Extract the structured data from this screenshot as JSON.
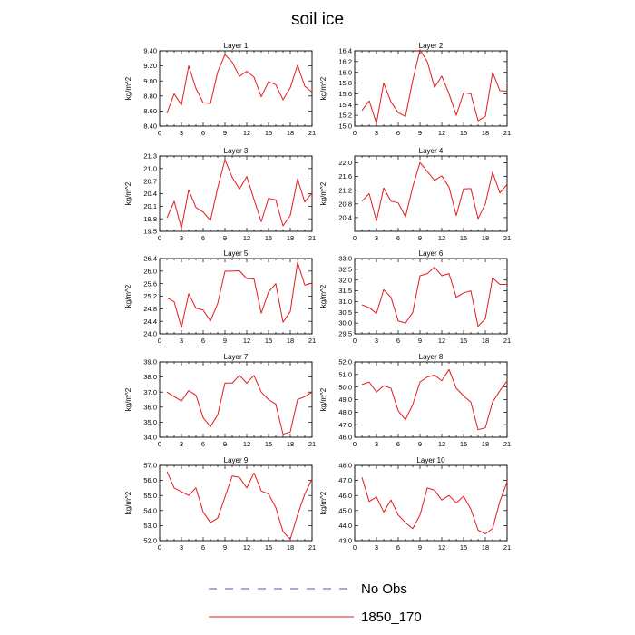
{
  "title": "soil ice",
  "legend": {
    "position": "bottom-center",
    "entries": [
      {
        "label": "No Obs",
        "color": "#5555aa",
        "dash": true
      },
      {
        "label": "1850_170",
        "color": "#e41a1c",
        "dash": false
      }
    ]
  },
  "chart_data": [
    {
      "type": "line",
      "title": "Layer 1",
      "ylabel": "kg/m^2",
      "xlim": [
        0,
        21
      ],
      "ylim": [
        8.4,
        9.4
      ],
      "xticks": [
        0,
        3,
        6,
        9,
        12,
        15,
        18,
        21
      ],
      "yticks": [
        "8.40",
        "8.60",
        "8.80",
        "9.00",
        "9.20",
        "9.40"
      ],
      "x": [
        1,
        2,
        3,
        4,
        5,
        6,
        7,
        8,
        9,
        10,
        11,
        12,
        13,
        14,
        15,
        16,
        17,
        18,
        19,
        20,
        21
      ],
      "series": [
        {
          "name": "1850_170",
          "color": "#e41a1c",
          "values": [
            8.57,
            8.83,
            8.68,
            9.2,
            8.9,
            8.71,
            8.7,
            9.12,
            9.35,
            9.25,
            9.06,
            9.13,
            9.05,
            8.79,
            8.99,
            8.95,
            8.75,
            8.91,
            9.21,
            8.93,
            8.85
          ]
        }
      ]
    },
    {
      "type": "line",
      "title": "Layer 2",
      "ylabel": "kg/m^2",
      "xlim": [
        0,
        21
      ],
      "ylim": [
        15.0,
        16.4
      ],
      "xticks": [
        0,
        3,
        6,
        9,
        12,
        15,
        18,
        21
      ],
      "yticks": [
        "15.0",
        "15.2",
        "15.4",
        "15.6",
        "15.8",
        "16.0",
        "16.2",
        "16.4"
      ],
      "x": [
        1,
        2,
        3,
        4,
        5,
        6,
        7,
        8,
        9,
        10,
        11,
        12,
        13,
        14,
        15,
        16,
        17,
        18,
        19,
        20,
        21
      ],
      "series": [
        {
          "name": "1850_170",
          "color": "#e41a1c",
          "values": [
            15.29,
            15.47,
            15.05,
            15.8,
            15.45,
            15.25,
            15.18,
            15.85,
            16.42,
            16.2,
            15.72,
            15.93,
            15.6,
            15.2,
            15.62,
            15.6,
            15.1,
            15.18,
            16.0,
            15.66,
            15.65
          ]
        }
      ]
    },
    {
      "type": "line",
      "title": "Layer 3",
      "ylabel": "kg/m^2",
      "xlim": [
        0,
        21
      ],
      "ylim": [
        19.5,
        21.3
      ],
      "xticks": [
        0,
        3,
        6,
        9,
        12,
        15,
        18,
        21
      ],
      "yticks": [
        "19.5",
        "19.8",
        "20.1",
        "20.4",
        "20.7",
        "21.0",
        "21.3"
      ],
      "x": [
        1,
        2,
        3,
        4,
        5,
        6,
        7,
        8,
        9,
        10,
        11,
        12,
        13,
        14,
        15,
        16,
        17,
        18,
        19,
        20,
        21
      ],
      "series": [
        {
          "name": "1850_170",
          "color": "#e41a1c",
          "values": [
            19.82,
            20.22,
            19.57,
            20.49,
            20.07,
            19.96,
            19.76,
            20.54,
            21.21,
            20.79,
            20.51,
            20.81,
            20.26,
            19.73,
            20.29,
            20.25,
            19.63,
            19.88,
            20.75,
            20.2,
            20.42
          ]
        }
      ]
    },
    {
      "type": "line",
      "title": "Layer 4",
      "ylabel": "kg/m^2",
      "xlim": [
        0,
        21
      ],
      "ylim": [
        20.0,
        22.2
      ],
      "xticks": [
        0,
        3,
        6,
        9,
        12,
        15,
        18,
        21
      ],
      "yticks": [
        "20.4",
        "20.8",
        "21.2",
        "21.6",
        "22.0"
      ],
      "x": [
        1,
        2,
        3,
        4,
        5,
        6,
        7,
        8,
        9,
        10,
        11,
        12,
        13,
        14,
        15,
        16,
        17,
        18,
        19,
        20,
        21
      ],
      "series": [
        {
          "name": "1850_170",
          "color": "#e41a1c",
          "values": [
            20.88,
            21.1,
            20.3,
            21.27,
            20.88,
            20.83,
            20.42,
            21.3,
            22.01,
            21.75,
            21.49,
            21.62,
            21.29,
            20.46,
            21.24,
            21.25,
            20.37,
            20.8,
            21.73,
            21.12,
            21.37
          ]
        }
      ]
    },
    {
      "type": "line",
      "title": "Layer 5",
      "ylabel": "kg/m^2",
      "xlim": [
        0,
        21
      ],
      "ylim": [
        24.0,
        26.4
      ],
      "xticks": [
        0,
        3,
        6,
        9,
        12,
        15,
        18,
        21
      ],
      "yticks": [
        "24.0",
        "24.4",
        "24.8",
        "25.2",
        "25.6",
        "26.0",
        "26.4"
      ],
      "x": [
        1,
        2,
        3,
        4,
        5,
        6,
        7,
        8,
        9,
        10,
        11,
        12,
        13,
        14,
        15,
        16,
        17,
        18,
        19,
        20,
        21
      ],
      "series": [
        {
          "name": "1850_170",
          "color": "#e41a1c",
          "values": [
            25.15,
            25.02,
            24.2,
            25.28,
            24.82,
            24.76,
            24.41,
            24.97,
            26.0,
            26.0,
            26.01,
            25.76,
            25.75,
            24.66,
            25.33,
            25.6,
            24.37,
            24.71,
            26.28,
            25.55,
            25.62
          ]
        }
      ]
    },
    {
      "type": "line",
      "title": "Layer 6",
      "ylabel": "kg/m^2",
      "xlim": [
        0,
        21
      ],
      "ylim": [
        29.5,
        33.0
      ],
      "xticks": [
        0,
        3,
        6,
        9,
        12,
        15,
        18,
        21
      ],
      "yticks": [
        "29.5",
        "30.0",
        "30.5",
        "31.0",
        "31.5",
        "32.0",
        "32.5",
        "33.0"
      ],
      "x": [
        1,
        2,
        3,
        4,
        5,
        6,
        7,
        8,
        9,
        10,
        11,
        12,
        13,
        14,
        15,
        16,
        17,
        18,
        19,
        20,
        21
      ],
      "series": [
        {
          "name": "1850_170",
          "color": "#e41a1c",
          "values": [
            30.85,
            30.72,
            30.45,
            31.55,
            31.2,
            30.1,
            30.0,
            30.5,
            32.2,
            32.3,
            32.6,
            32.2,
            32.3,
            31.2,
            31.4,
            31.5,
            29.85,
            30.2,
            32.1,
            31.8,
            31.8
          ]
        }
      ]
    },
    {
      "type": "line",
      "title": "Layer 7",
      "ylabel": "kg/m^2",
      "xlim": [
        0,
        21
      ],
      "ylim": [
        34.0,
        39.0
      ],
      "xticks": [
        0,
        3,
        6,
        9,
        12,
        15,
        18,
        21
      ],
      "yticks": [
        "34.0",
        "35.0",
        "36.0",
        "37.0",
        "38.0",
        "39.0"
      ],
      "x": [
        1,
        2,
        3,
        4,
        5,
        6,
        7,
        8,
        9,
        10,
        11,
        12,
        13,
        14,
        15,
        16,
        17,
        18,
        19,
        20,
        21
      ],
      "series": [
        {
          "name": "1850_170",
          "color": "#e41a1c",
          "values": [
            37.0,
            36.7,
            36.4,
            37.1,
            36.8,
            35.3,
            34.7,
            35.5,
            37.6,
            37.6,
            38.1,
            37.6,
            38.1,
            37.0,
            36.5,
            36.2,
            34.2,
            34.35,
            36.5,
            36.7,
            37.0
          ]
        }
      ]
    },
    {
      "type": "line",
      "title": "Layer 8",
      "ylabel": "kg/m^2",
      "xlim": [
        0,
        21
      ],
      "ylim": [
        46.0,
        52.0
      ],
      "xticks": [
        0,
        3,
        6,
        9,
        12,
        15,
        18,
        21
      ],
      "yticks": [
        "46.0",
        "47.0",
        "48.0",
        "49.0",
        "50.0",
        "51.0",
        "52.0"
      ],
      "x": [
        1,
        2,
        3,
        4,
        5,
        6,
        7,
        8,
        9,
        10,
        11,
        12,
        13,
        14,
        15,
        16,
        17,
        18,
        19,
        20,
        21
      ],
      "series": [
        {
          "name": "1850_170",
          "color": "#e41a1c",
          "values": [
            50.2,
            50.4,
            49.6,
            50.1,
            49.9,
            48.1,
            47.4,
            48.6,
            50.4,
            50.8,
            50.95,
            50.5,
            51.4,
            49.9,
            49.3,
            48.8,
            46.6,
            46.75,
            48.8,
            49.7,
            50.5
          ]
        }
      ]
    },
    {
      "type": "line",
      "title": "Layer 9",
      "ylabel": "kg/m^2",
      "xlim": [
        0,
        21
      ],
      "ylim": [
        52.0,
        57.0
      ],
      "xticks": [
        0,
        3,
        6,
        9,
        12,
        15,
        18,
        21
      ],
      "yticks": [
        "52.0",
        "53.0",
        "54.0",
        "55.0",
        "56.0",
        "57.0"
      ],
      "x": [
        1,
        2,
        3,
        4,
        5,
        6,
        7,
        8,
        9,
        10,
        11,
        12,
        13,
        14,
        15,
        16,
        17,
        18,
        19,
        20,
        21
      ],
      "series": [
        {
          "name": "1850_170",
          "color": "#e41a1c",
          "values": [
            56.6,
            55.5,
            55.25,
            55.0,
            55.5,
            53.9,
            53.2,
            53.5,
            54.9,
            56.3,
            56.2,
            55.5,
            56.5,
            55.3,
            55.1,
            54.2,
            52.6,
            52.1,
            53.7,
            55.1,
            56.1
          ]
        }
      ]
    },
    {
      "type": "line",
      "title": "Layer 10",
      "ylabel": "kg/m^2",
      "xlim": [
        0,
        21
      ],
      "ylim": [
        43.0,
        48.0
      ],
      "xticks": [
        0,
        3,
        6,
        9,
        12,
        15,
        18,
        21
      ],
      "yticks": [
        "43.0",
        "44.0",
        "45.0",
        "46.0",
        "47.0",
        "48.0"
      ],
      "x": [
        1,
        2,
        3,
        4,
        5,
        6,
        7,
        8,
        9,
        10,
        11,
        12,
        13,
        14,
        15,
        16,
        17,
        18,
        19,
        20,
        21
      ],
      "series": [
        {
          "name": "1850_170",
          "color": "#e41a1c",
          "values": [
            47.2,
            45.6,
            45.9,
            44.9,
            45.7,
            44.7,
            44.2,
            43.8,
            44.7,
            46.5,
            46.35,
            45.7,
            46.0,
            45.5,
            45.95,
            45.1,
            43.7,
            43.45,
            43.8,
            45.6,
            46.9
          ]
        }
      ]
    }
  ]
}
